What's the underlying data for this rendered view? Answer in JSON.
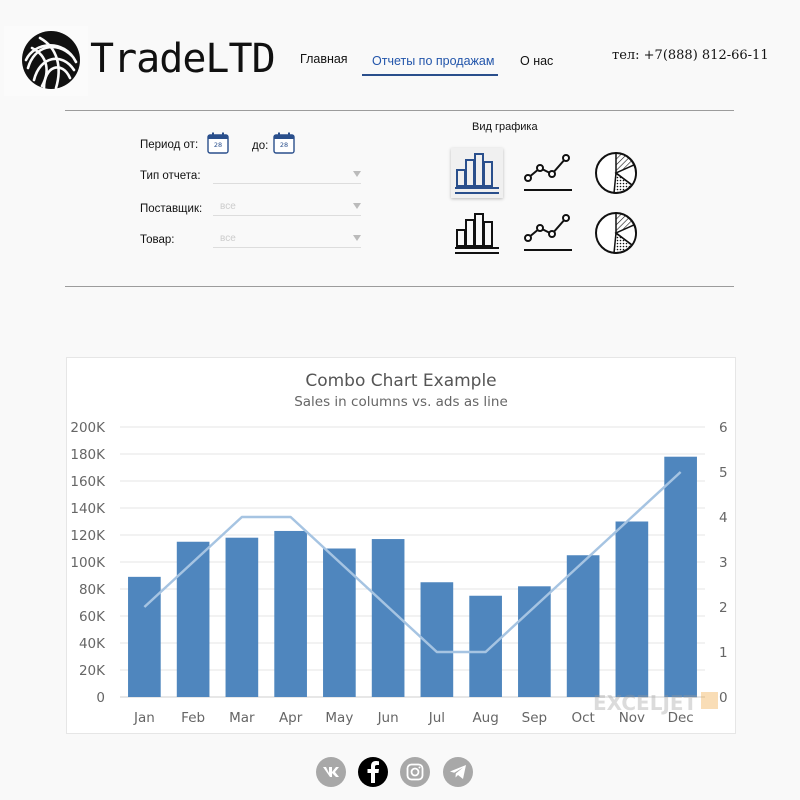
{
  "header": {
    "brand": "TradeLTD",
    "nav": [
      "Главная",
      "Отчеты по продажам",
      "О нас"
    ],
    "active_nav": "Отчеты по продажам",
    "phone": "тел: +7(888) 812-66-11"
  },
  "filters": {
    "period_from_label": "Период от:",
    "period_to_label": "до:",
    "calendar_day": "28",
    "report_type_label": "Тип отчета:",
    "report_type_value": "",
    "supplier_label": "Поставщик:",
    "supplier_value": "все",
    "product_label": "Товар:",
    "product_value": "все"
  },
  "view_type": {
    "label": "Вид графика",
    "options": [
      "bar-chart-icon",
      "line-chart-icon",
      "pie-chart-icon",
      "bar-chart-icon",
      "line-chart-icon",
      "pie-chart-icon"
    ],
    "selected": 0
  },
  "chart_data": {
    "type": "bar",
    "title": "Combo Chart Example",
    "subtitle": "Sales in columns vs. ads as line",
    "categories": [
      "Jan",
      "Feb",
      "Mar",
      "Apr",
      "May",
      "Jun",
      "Jul",
      "Aug",
      "Sep",
      "Oct",
      "Nov",
      "Dec"
    ],
    "series": [
      {
        "type": "bar",
        "axis": "left",
        "color": "#4f86be",
        "values": [
          89000,
          115000,
          118000,
          123000,
          110000,
          117000,
          85000,
          75000,
          82000,
          105000,
          130000,
          178000
        ]
      },
      {
        "type": "line",
        "axis": "right",
        "color": "#a6c4e2",
        "values": [
          2,
          3,
          4,
          4,
          3,
          2,
          1,
          1,
          2,
          3,
          4,
          5
        ]
      }
    ],
    "y_left": {
      "min": 0,
      "max": 200000,
      "ticks": [
        "0",
        "20K",
        "40K",
        "60K",
        "80K",
        "100K",
        "120K",
        "140K",
        "160K",
        "180K",
        "200K"
      ]
    },
    "y_right": {
      "min": 0,
      "max": 6,
      "ticks": [
        "0",
        "1",
        "2",
        "3",
        "4",
        "5",
        "6"
      ]
    },
    "grid": true,
    "watermark": "EXCELJET"
  },
  "social": [
    "vk-icon",
    "facebook-icon",
    "instagram-icon",
    "telegram-icon"
  ]
}
